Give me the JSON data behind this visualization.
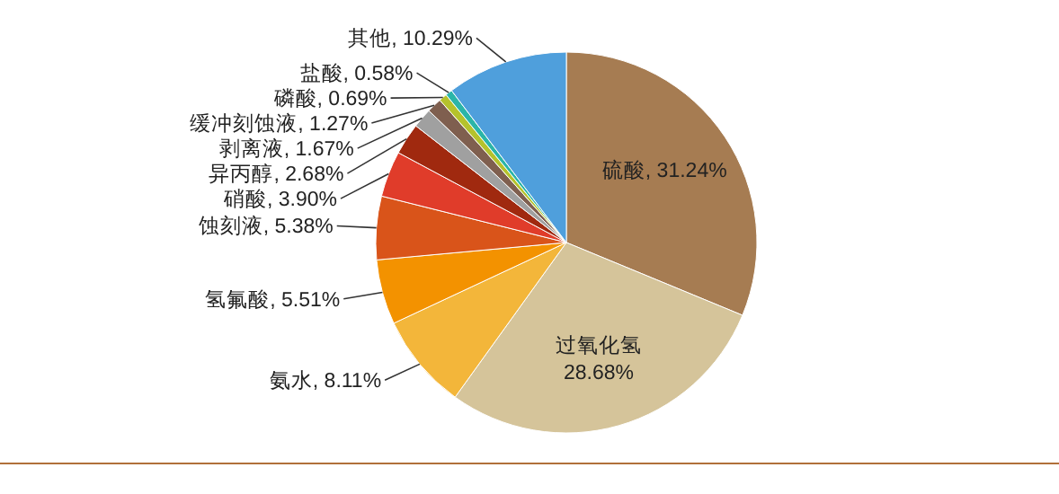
{
  "chart_data": {
    "type": "pie",
    "categories": [
      "硫酸",
      "过氧化氢",
      "氨水",
      "氢氟酸",
      "蚀刻液",
      "硝酸",
      "异丙醇",
      "剥离液",
      "缓冲刻蚀液",
      "磷酸",
      "盐酸",
      "其他"
    ],
    "values": [
      31.24,
      28.68,
      8.11,
      5.51,
      5.38,
      3.9,
      2.68,
      1.67,
      1.27,
      0.69,
      0.58,
      10.29
    ],
    "value_labels": [
      "31.24%",
      "28.68%",
      "8.11%",
      "5.51%",
      "5.38%",
      "3.90%",
      "2.68%",
      "1.67%",
      "1.27%",
      "0.69%",
      "0.58%",
      "10.29%"
    ],
    "colors": [
      "#a67c52",
      "#d5c49a",
      "#f3b63a",
      "#f39200",
      "#d9541a",
      "#e03c2a",
      "#a0290f",
      "#a0a0a0",
      "#7f5f4f",
      "#b5c22c",
      "#2bb5a8",
      "#4f9fdc"
    ]
  }
}
